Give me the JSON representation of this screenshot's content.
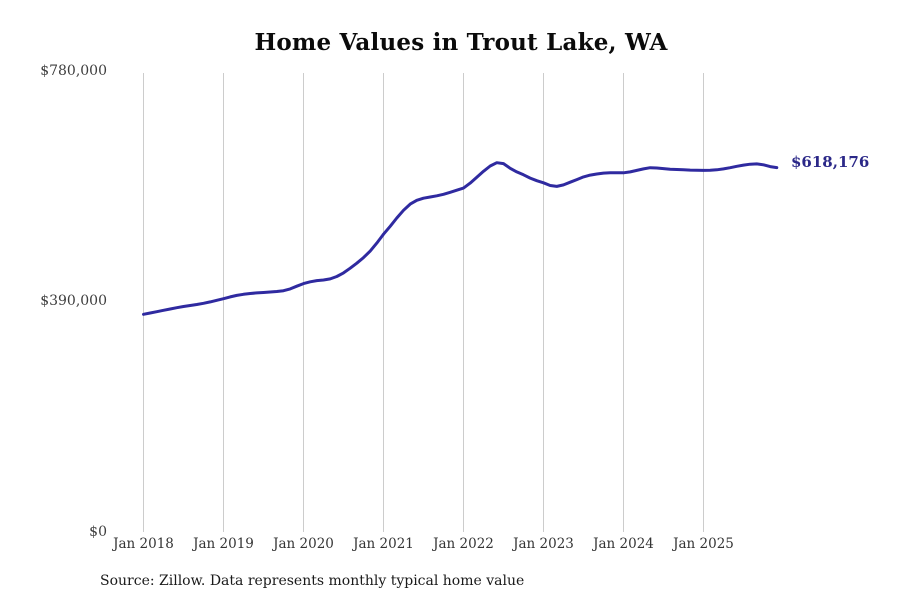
{
  "chart_data": {
    "type": "line",
    "title": "Home Values in Trout Lake, WA",
    "x_tick_labels": [
      "Jan 2018",
      "Jan 2019",
      "Jan 2020",
      "Jan 2021",
      "Jan 2022",
      "Jan 2023",
      "Jan 2024",
      "Jan 2025"
    ],
    "y_tick_labels": [
      "$780,000",
      "$390,000",
      "$0"
    ],
    "y_ticks": [
      780000,
      390000,
      0
    ],
    "ylim": [
      0,
      780000
    ],
    "grid": "vertical-only",
    "legend": "none",
    "frequency": "monthly",
    "start_month": "2018-01",
    "end_month": "2025-12",
    "end_label": "$618,176",
    "final_value": 618176,
    "series": [
      {
        "name": "Typical home value",
        "color": "#2f2aa0",
        "monthly_values": [
          370000,
          372300,
          374500,
          376800,
          379000,
          381200,
          383300,
          385000,
          386700,
          388600,
          391000,
          393800,
          396500,
          399500,
          402000,
          403800,
          405200,
          406200,
          407000,
          407800,
          408600,
          410000,
          413000,
          417500,
          422000,
          425000,
          427000,
          428000,
          430000,
          434000,
          440000,
          448000,
          456500,
          466000,
          477000,
          490500,
          505500,
          519000,
          533000,
          546000,
          556500,
          563000,
          566500,
          568500,
          570500,
          573000,
          576500,
          580000,
          583500,
          592000,
          602000,
          612000,
          621000,
          626500,
          625000,
          617000,
          611000,
          606000,
          600500,
          596000,
          592500,
          588000,
          586500,
          589000,
          593500,
          598000,
          602500,
          605500,
          607500,
          609000,
          609500,
          609500,
          609500,
          611000,
          613500,
          616000,
          618000,
          617500,
          616500,
          615500,
          615000,
          614500,
          614000,
          613800,
          613500,
          613800,
          614500,
          616000,
          618000,
          620500,
          622500,
          624000,
          624500,
          623000,
          620000,
          618176
        ]
      }
    ]
  },
  "footer": {
    "source_note": "Source: Zillow. Data represents monthly typical home value"
  },
  "colors": {
    "background": "#ffffff",
    "line": "#2f2aa0",
    "end_label": "#2b2888",
    "gridline": "#cccccc",
    "title": "#0b0b0b",
    "axis_label": "#3d3d3d"
  }
}
